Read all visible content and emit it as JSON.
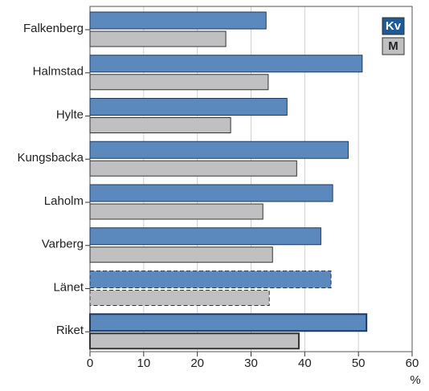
{
  "chart_data": {
    "type": "bar",
    "orientation": "horizontal",
    "categories": [
      "Falkenberg",
      "Halmstad",
      "Hylte",
      "Kungsbacka",
      "Laholm",
      "Varberg",
      "Länet",
      "Riket"
    ],
    "series": [
      {
        "name": "Kv",
        "color": "#5b88bd",
        "values": [
          32.8,
          50.7,
          36.7,
          48.1,
          45.2,
          43.0,
          44.9,
          51.5
        ]
      },
      {
        "name": "M",
        "color": "#c0c0c2",
        "values": [
          25.3,
          33.2,
          26.2,
          38.5,
          32.2,
          34.0,
          33.4,
          38.9
        ]
      }
    ],
    "border_styles": [
      "solid",
      "solid",
      "solid",
      "solid",
      "solid",
      "solid",
      "dashed",
      "bold"
    ],
    "xlabel": "%",
    "xlim": [
      0,
      60
    ],
    "xticks": [
      0,
      10,
      20,
      30,
      40,
      50,
      60
    ],
    "grid": true,
    "legend": "upper right"
  }
}
